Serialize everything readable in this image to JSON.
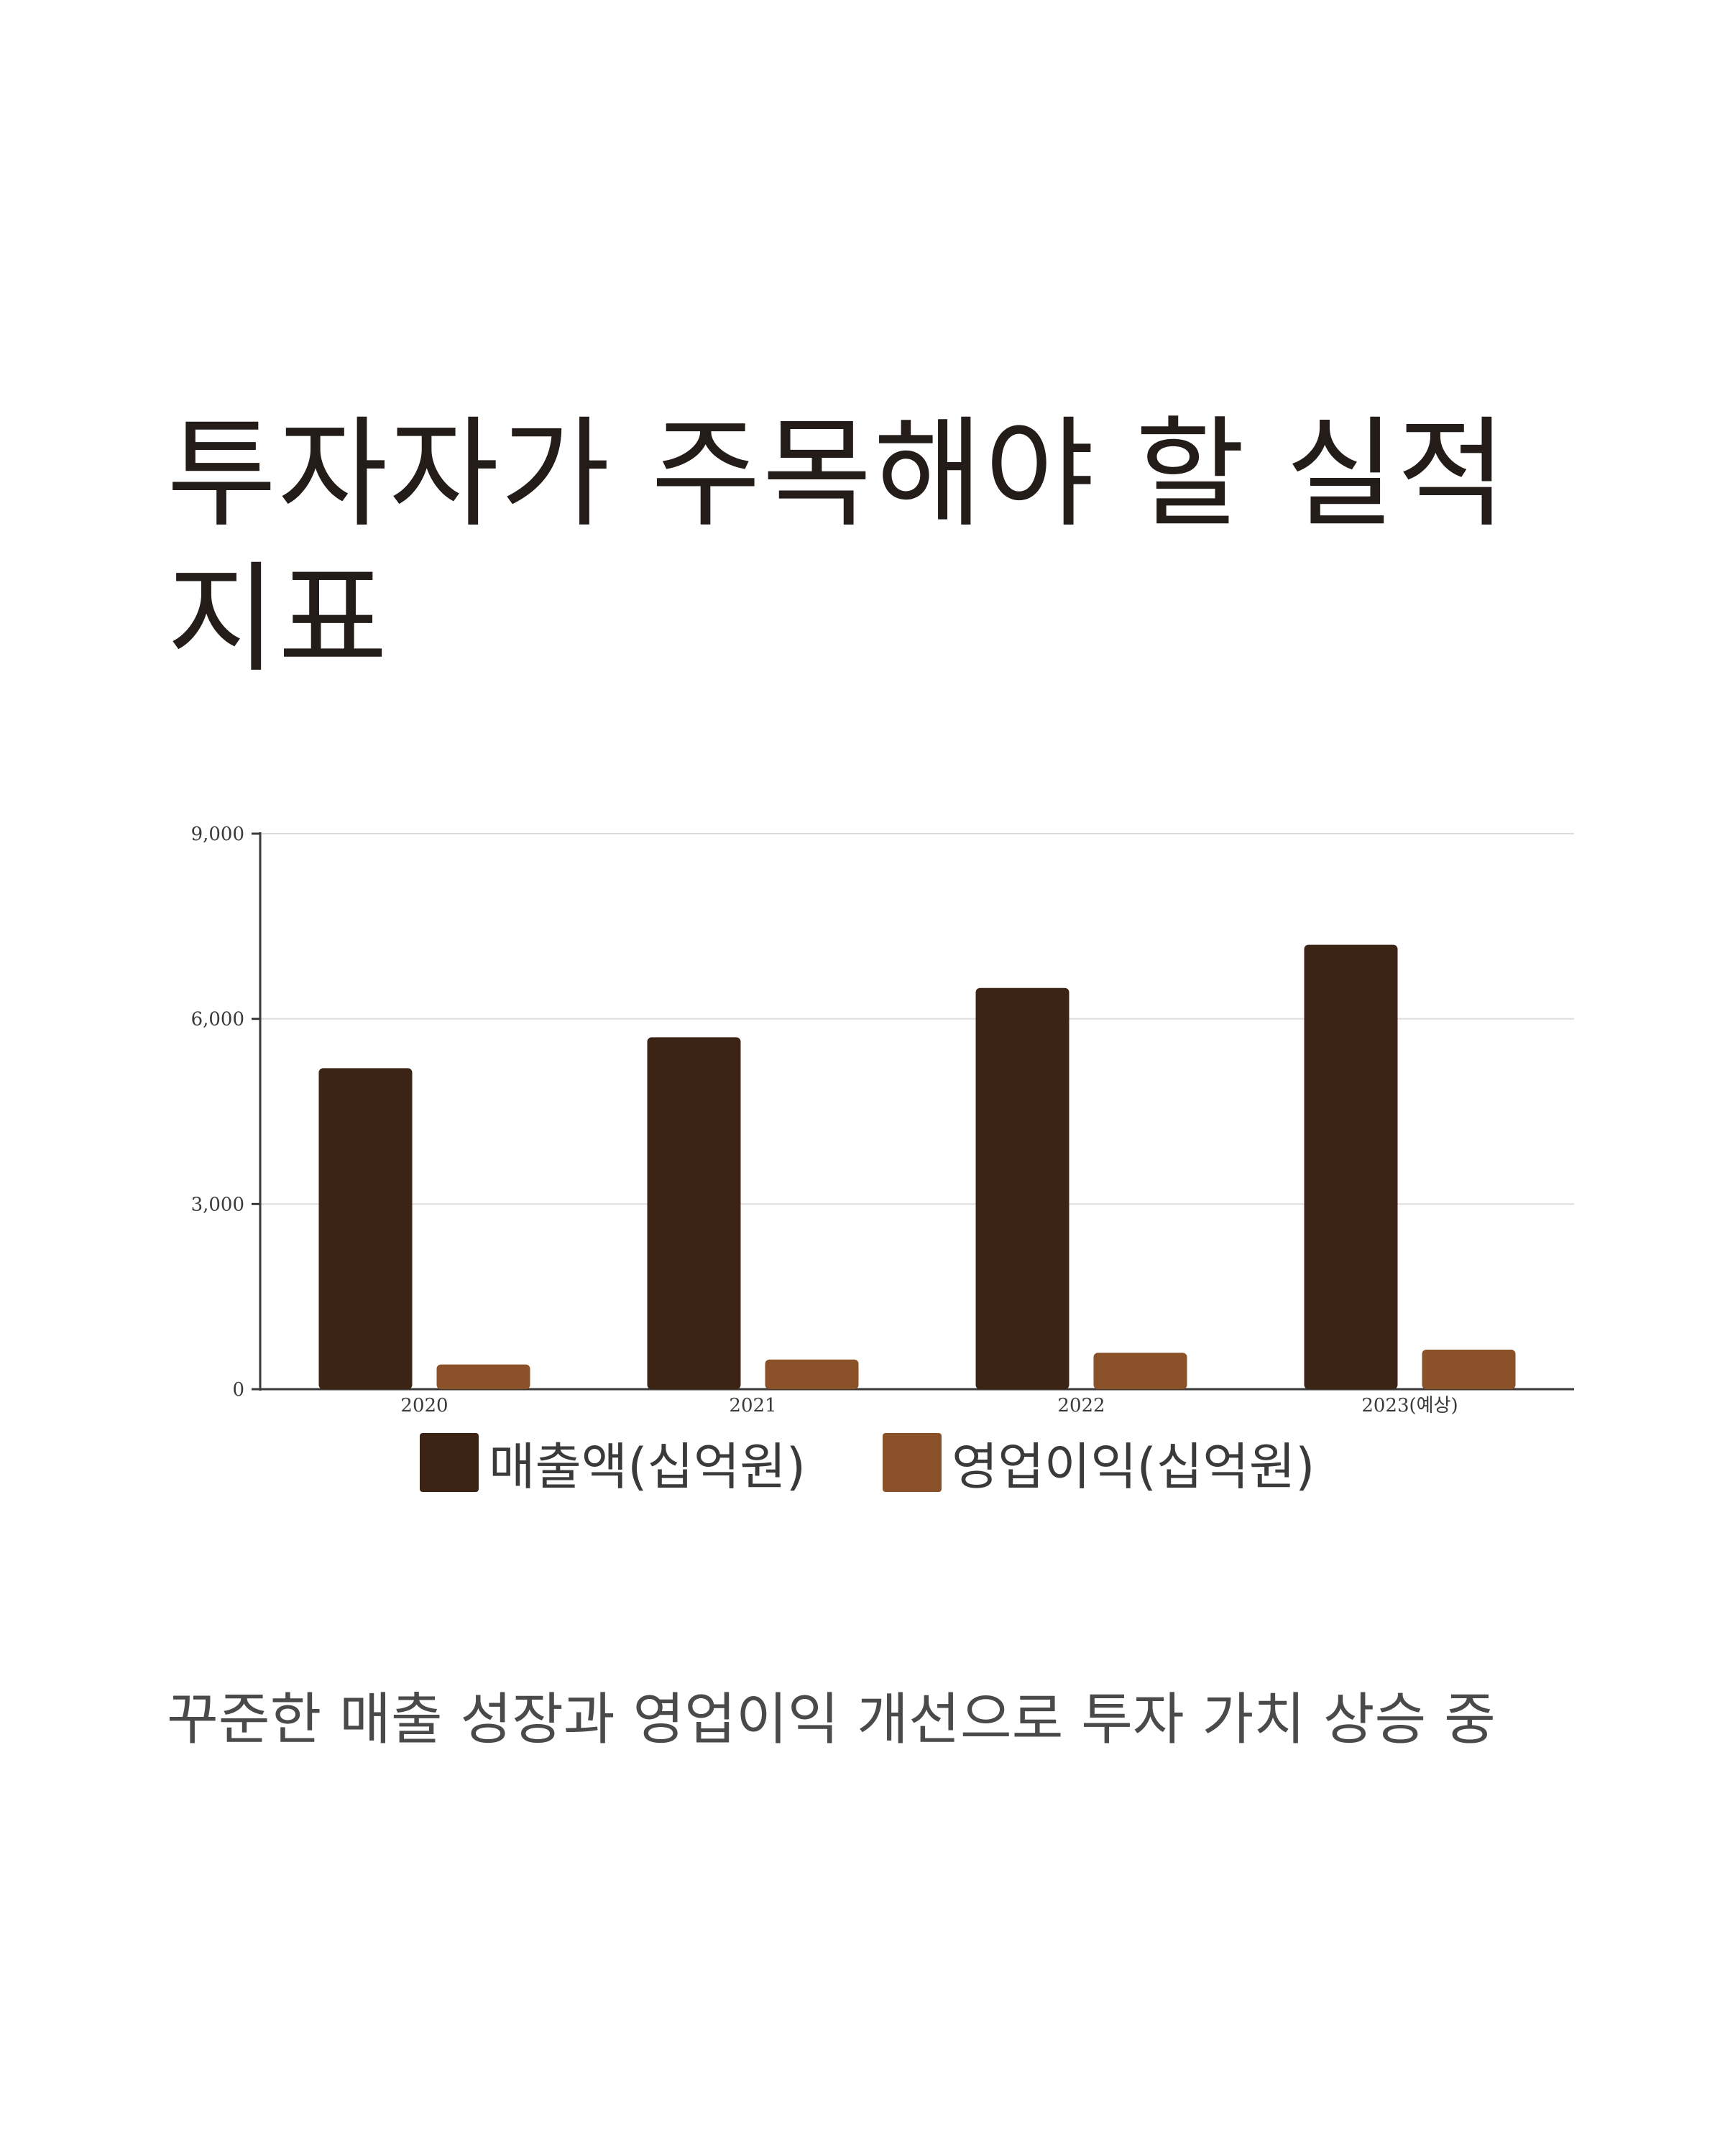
{
  "title": "투자자가 주목해야 할 실적 지표",
  "caption": "꾸준한 매출 성장과 영업이익 개선으로 투자 가치 상승 중",
  "colors": {
    "revenue": "#3c2415",
    "operating_profit": "#8b5128"
  },
  "chart_data": {
    "type": "bar",
    "categories": [
      "2020",
      "2021",
      "2022",
      "2023(예상)"
    ],
    "series": [
      {
        "name": "매출액(십억원)",
        "values": [
          5200,
          5700,
          6500,
          7200
        ]
      },
      {
        "name": "영업이익(십억원)",
        "values": [
          400,
          480,
          590,
          640
        ]
      }
    ],
    "yticks": [
      "0",
      "3,000",
      "6,000",
      "9,000"
    ],
    "ylim": [
      0,
      9000
    ],
    "grid": true,
    "legend_position": "bottom"
  }
}
